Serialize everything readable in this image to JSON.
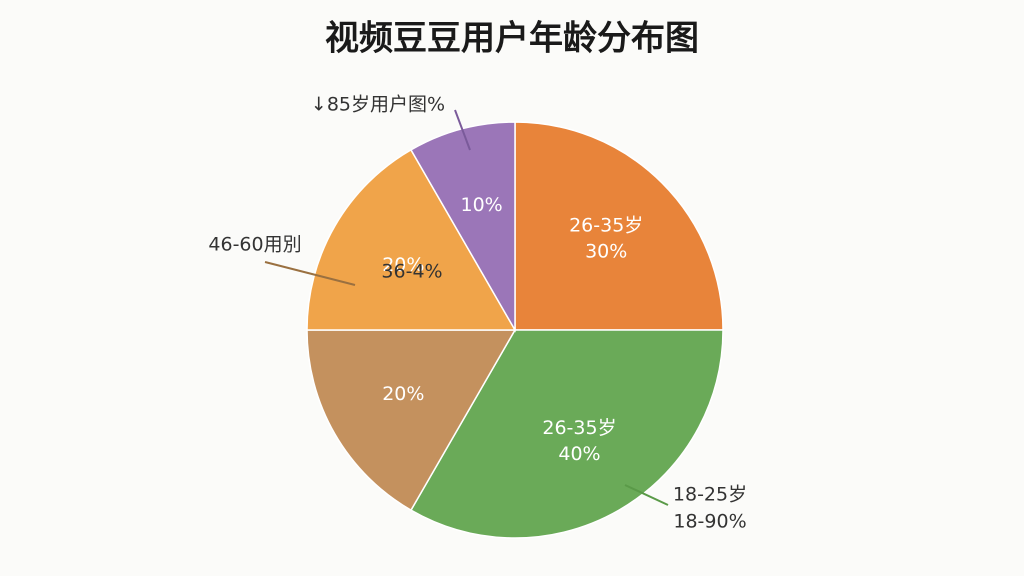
{
  "chart_data": {
    "type": "pie",
    "title": "视频豆豆用户年龄分布图",
    "categories": [
      "26-35岁",
      "26-35岁",
      null,
      null,
      null
    ],
    "values": [
      30,
      40,
      20,
      20,
      10
    ],
    "value_labels": [
      "30%",
      "40%",
      "20%",
      "20%",
      "10%"
    ],
    "colors": [
      "#e8843a",
      "#6aaa58",
      "#c4915e",
      "#f0a44a",
      "#9b76b8"
    ],
    "annotations": [
      "↓85岁用户图%",
      "46-60用別",
      "36-4%",
      "18-25岁",
      "18-90%"
    ]
  }
}
